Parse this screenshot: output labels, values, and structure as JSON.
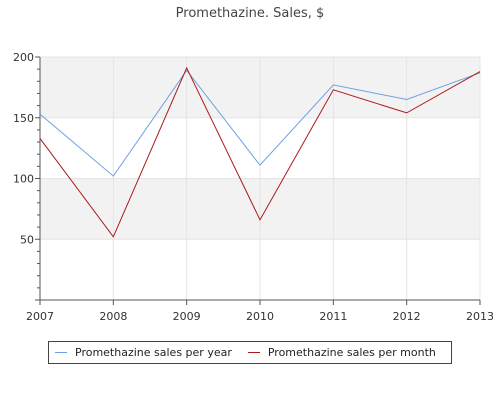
{
  "chart_data": {
    "type": "line",
    "title": "Promethazine. Sales, $",
    "xlabel": "",
    "ylabel": "",
    "categories": [
      "2007",
      "2008",
      "2009",
      "2010",
      "2011",
      "2012",
      "2013"
    ],
    "ylim": [
      0,
      200
    ],
    "yticks": [
      50,
      100,
      150,
      200
    ],
    "grid": true,
    "legend_position": "bottom",
    "series": [
      {
        "name": "Promethazine sales per year",
        "color": "#6f9fe6",
        "values": [
          153,
          102,
          189,
          111,
          177,
          165,
          187
        ]
      },
      {
        "name": "Promethazine sales per month",
        "color": "#aa1a1a",
        "values": [
          133,
          52,
          191,
          66,
          173,
          154,
          188
        ]
      }
    ]
  }
}
